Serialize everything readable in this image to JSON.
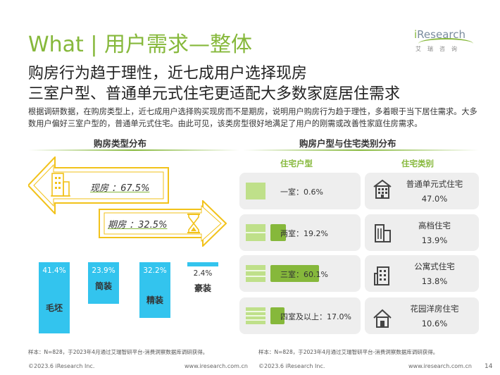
{
  "header": {
    "title": "What | 用户需求—整体",
    "logo_prefix": "i",
    "logo_rest": "Research",
    "logo_sub": "艾瑞咨询"
  },
  "subtitle": {
    "line1": "购房行为趋于理性，近七成用户选择现房",
    "line2": "三室户型、普通单元式住宅更适配大多数家庭居住需求"
  },
  "description": "根据调研数据，在购房类型上，近七成用户选择购买现房而不是期房，说明用户购房行为趋于理性，多着眼于当下居住需求。大多数用户偏好三室户型的，普通单元式住宅。由此可见，该类房型很好地满足了用户的刚需或改善性家庭住房需求。",
  "left_panel": {
    "title": "购房类型分布",
    "types": [
      {
        "label": "现房 ：67.5%",
        "value": 67.5,
        "icon": "building-icon"
      },
      {
        "label": "期房 ：32.5%",
        "value": 32.5,
        "icon": "hourglass-icon"
      }
    ],
    "decoration": {
      "bars": [
        {
          "category": "毛坯",
          "label": "41.4%",
          "value": 41.4
        },
        {
          "category": "简装",
          "label": "23.9%",
          "value": 23.9
        },
        {
          "category": "精装",
          "label": "32.2%",
          "value": 32.2
        },
        {
          "category": "豪装",
          "label": "2.4%",
          "value": 2.4
        }
      ]
    },
    "note": "样本：N=828，于2023年4月通过艾瑞智研平台-消费洞察数据库调研获得。"
  },
  "right_panel": {
    "title": "购房户型与住宅类别分布",
    "col_room": "住宅户型",
    "col_residence": "住宅类别",
    "rooms": [
      {
        "label": "一室：0.6%",
        "value": 0.6
      },
      {
        "label": "两室：19.2%",
        "value": 19.2
      },
      {
        "label": "三室：60.1%",
        "value": 60.1
      },
      {
        "label": "四室及以上：17.0%",
        "value": 17.0
      }
    ],
    "residences": [
      {
        "name": "普通单元式住宅",
        "value": "47.0%",
        "icon": "apartment-block-icon"
      },
      {
        "name": "高档住宅",
        "value": "13.9%",
        "icon": "high-end-building-icon"
      },
      {
        "name": "公寓式住宅",
        "value": "13.8%",
        "icon": "apartment-tower-icon"
      },
      {
        "name": "花园洋房住宅",
        "value": "10.6%",
        "icon": "garden-house-icon"
      }
    ],
    "note": "样本：N=828，于2023年4月通过艾瑞智研平台-消费洞察数据库调研获得。"
  },
  "footer": {
    "copyright": "©2023.6 iResearch Inc.",
    "url": "www.iresearch.com.cn",
    "page": "14"
  },
  "colors": {
    "accent_green": "#86b83b",
    "bar_blue": "#33c4ee",
    "row_gray": "#eeeeee"
  }
}
